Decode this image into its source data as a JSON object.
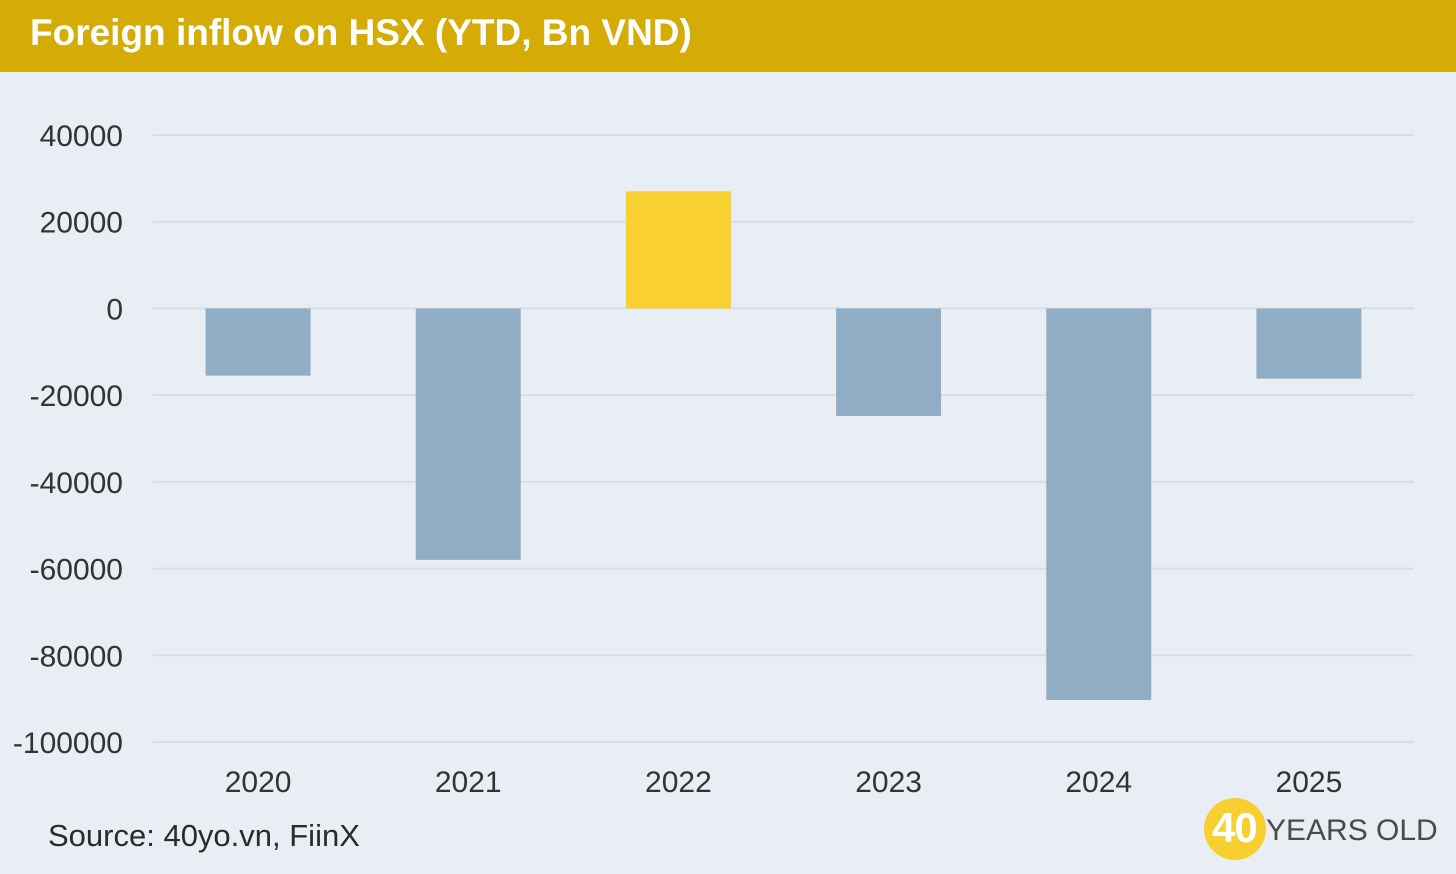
{
  "header": {
    "title": "Foreign inflow on HSX (YTD, Bn VND)"
  },
  "footer": {
    "source": "Source: 40yo.vn, FiinX"
  },
  "logo": {
    "number": "40",
    "text": "YEARS OLD"
  },
  "colors": {
    "header_bg": "#d5ab05",
    "background": "#e9eef5",
    "negative_bar": "#91adc6",
    "positive_bar": "#f8d02f",
    "gridline": "#d9dee4",
    "axis_text": "#333333"
  },
  "chart_data": {
    "type": "bar",
    "title": "Foreign inflow on HSX (YTD, Bn VND)",
    "categories": [
      "2020",
      "2021",
      "2022",
      "2023",
      "2024",
      "2025"
    ],
    "values": [
      -15500,
      -58000,
      27000,
      -24800,
      -90300,
      -16200
    ],
    "ylim": [
      -100000,
      40000
    ],
    "yticks": [
      40000,
      20000,
      0,
      -20000,
      -40000,
      -60000,
      -80000,
      -100000
    ],
    "ytick_labels": [
      "40000",
      "20000",
      "0",
      "-20000",
      "-40000",
      "-60000",
      "-80000",
      "-100000"
    ],
    "xlabel": "",
    "ylabel": "",
    "grid": true,
    "legend": "none"
  }
}
